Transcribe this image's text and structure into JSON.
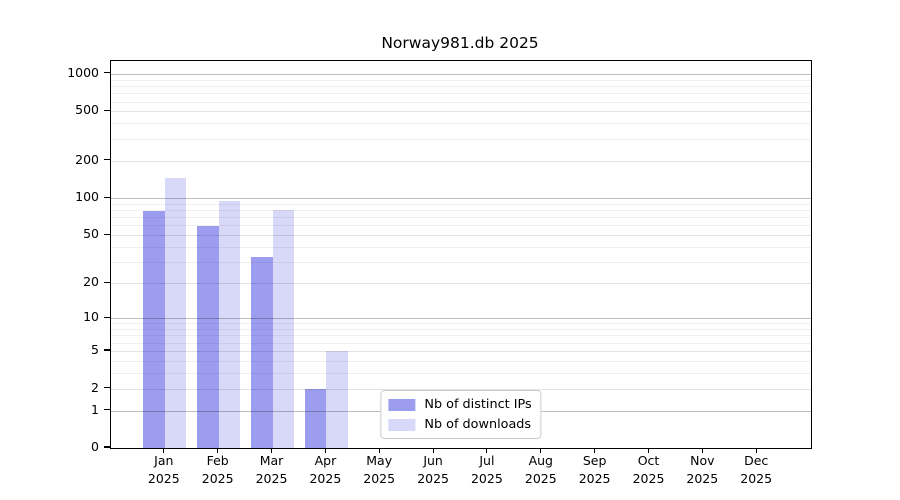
{
  "chart_data": {
    "type": "bar",
    "title": "Norway981.db 2025",
    "x_labels": [
      {
        "month": "Jan",
        "year": "2025"
      },
      {
        "month": "Feb",
        "year": "2025"
      },
      {
        "month": "Mar",
        "year": "2025"
      },
      {
        "month": "Apr",
        "year": "2025"
      },
      {
        "month": "May",
        "year": "2025"
      },
      {
        "month": "Jun",
        "year": "2025"
      },
      {
        "month": "Jul",
        "year": "2025"
      },
      {
        "month": "Aug",
        "year": "2025"
      },
      {
        "month": "Sep",
        "year": "2025"
      },
      {
        "month": "Oct",
        "year": "2025"
      },
      {
        "month": "Nov",
        "year": "2025"
      },
      {
        "month": "Dec",
        "year": "2025"
      }
    ],
    "series": [
      {
        "name": "Nb of distinct IPs",
        "color": "#9d9df0",
        "values": [
          79,
          59,
          33,
          2,
          0,
          0,
          0,
          0,
          0,
          0,
          0,
          0
        ]
      },
      {
        "name": "Nb of downloads",
        "color": "#d8d8f8",
        "values": [
          145,
          95,
          80,
          5,
          0,
          0,
          0,
          0,
          0,
          0,
          0,
          0
        ]
      }
    ],
    "y_axis": {
      "scale": "log1p",
      "ticks": [
        0,
        1,
        2,
        5,
        10,
        20,
        50,
        100,
        200,
        500,
        1000
      ],
      "major_grid_values": [
        1,
        10,
        100,
        1000
      ],
      "minor_grid_values": [
        3,
        4,
        6,
        7,
        8,
        9,
        30,
        40,
        60,
        70,
        80,
        90,
        300,
        400,
        600,
        700,
        800,
        900
      ],
      "max": 1268
    },
    "legend": {
      "position": "lower center",
      "entries": [
        "Nb of distinct IPs",
        "Nb of downloads"
      ]
    },
    "grid": true,
    "colors": {
      "background": "#ffffff",
      "axis": "#000000",
      "grid_major": "#bfbfbf",
      "grid_minor": "#ececec",
      "legend_border": "#cccccc"
    }
  }
}
